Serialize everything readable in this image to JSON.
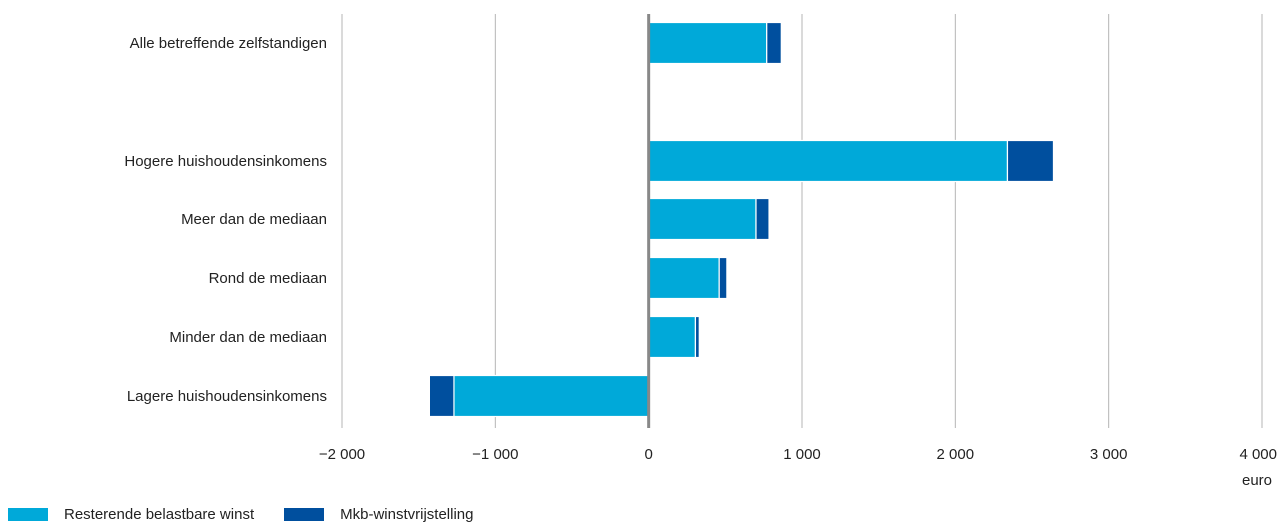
{
  "chart_data": {
    "type": "bar",
    "orientation": "horizontal",
    "stacked": true,
    "categories": [
      "Alle betreffende zelfstandigen",
      "",
      "Hogere huishoudensinkomens",
      "Meer dan de mediaan",
      "Rond de mediaan",
      "Minder dan de mediaan",
      "Lagere huishoudensinkomens"
    ],
    "series": [
      {
        "name": "Resterende belastbare winst",
        "color": "#00a9d9",
        "values": [
          770,
          null,
          2340,
          700,
          460,
          305,
          -1270
        ]
      },
      {
        "name": "Mkb-winstvrijstelling",
        "color": "#004f9e",
        "values": [
          95,
          null,
          300,
          85,
          50,
          25,
          -160
        ]
      }
    ],
    "xlim": [
      -2000,
      4000
    ],
    "xticks": [
      -2000,
      -1000,
      0,
      1000,
      2000,
      3000,
      4000
    ],
    "xtick_labels": [
      "−2 000",
      "−1 000",
      "0",
      "1 000",
      "2 000",
      "3 000",
      "4 000"
    ],
    "xlabel": "euro",
    "grid": "vertical",
    "legend_position": "bottom-left"
  }
}
